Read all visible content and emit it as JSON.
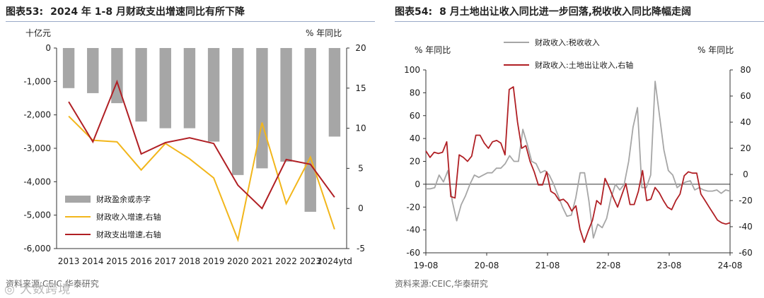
{
  "left": {
    "title_label": "图表53:",
    "title_text": "2024 年 1-8 月财政支出增速同比有所下降",
    "source": "资料来源:CEIC,华泰研究",
    "watermark": "大数跨境",
    "left_unit": "十亿元",
    "right_unit": "% 年同比",
    "colors": {
      "bar": "#a6a6a6",
      "revenue": "#f2b61b",
      "expenditure": "#b01f24"
    }
  },
  "right": {
    "title_label": "图表54:",
    "title_text": "8 月土地出让收入同比进一步回落,税收收入同比降幅走阔",
    "source": "资料来源:CEIC,华泰研究",
    "left_unit": "% 年同比",
    "right_unit": "% 年同比",
    "colors": {
      "tax": "#a6a6a6",
      "land": "#b01f24"
    }
  },
  "chart_data": [
    {
      "type": "bar+line",
      "title": "2024 年 1-8 月财政支出增速同比有所下降",
      "categories": [
        "2013",
        "2014",
        "2015",
        "2016",
        "2017",
        "2018",
        "2019",
        "2020",
        "2021",
        "2022",
        "2023",
        "2024ytd"
      ],
      "y_left": {
        "label": "十亿元",
        "ylim": [
          -6000,
          0
        ],
        "ticks": [
          0,
          -1000,
          -2000,
          -3000,
          -4000,
          -5000,
          -6000
        ]
      },
      "y_right": {
        "label": "% 年同比",
        "ylim": [
          -5,
          20
        ],
        "ticks": [
          20,
          15,
          10,
          5,
          0,
          -5
        ]
      },
      "series": [
        {
          "name": "财政盈余或赤字",
          "kind": "bar",
          "axis": "left",
          "values": [
            -1200,
            -1350,
            -1650,
            -2200,
            -2400,
            -2400,
            -2800,
            -3800,
            -3600,
            -3400,
            -4900,
            -2650
          ]
        },
        {
          "name": "财政收入增速,右轴",
          "kind": "line",
          "axis": "right",
          "values": [
            11.5,
            8.5,
            8.3,
            4.8,
            8.1,
            6.2,
            3.8,
            -3.9,
            10.7,
            0.6,
            6.4,
            -2.6
          ]
        },
        {
          "name": "财政支出增速,右轴",
          "kind": "line",
          "axis": "right",
          "values": [
            13.3,
            8.3,
            15.8,
            6.8,
            8.2,
            8.8,
            8.1,
            2.9,
            0.0,
            6.1,
            5.5,
            1.4
          ]
        }
      ],
      "legend": [
        {
          "name": "财政盈余或赤字",
          "kind": "bar"
        },
        {
          "name": "财政收入增速,右轴",
          "kind": "line"
        },
        {
          "name": "财政支出增速,右轴",
          "kind": "line"
        }
      ]
    },
    {
      "type": "line",
      "title": "8 月土地出让收入同比进一步回落,税收收入同比降幅走阔",
      "x_ticks": [
        "19-08",
        "20-08",
        "21-08",
        "22-08",
        "23-08",
        "24-08"
      ],
      "y_left": {
        "label": "% 年同比",
        "ylim": [
          -60,
          100
        ],
        "ticks": [
          100,
          80,
          60,
          40,
          20,
          0,
          -20,
          -40,
          -60
        ]
      },
      "y_right": {
        "label": "% 年同比",
        "ylim": [
          -60,
          80
        ],
        "ticks": [
          80,
          60,
          40,
          20,
          0,
          -20,
          -40,
          -60
        ]
      },
      "series": [
        {
          "name": "财政收入:税收收入",
          "axis": "left",
          "values": [
            -4,
            -4,
            -3,
            8,
            2,
            12,
            -15,
            -32,
            -18,
            -10,
            0,
            8,
            6,
            8,
            10,
            10,
            14,
            14,
            18,
            25,
            20,
            20,
            48,
            35,
            20,
            18,
            10,
            12,
            8,
            0,
            -10,
            -20,
            -28,
            -27,
            -12,
            10,
            10,
            -15,
            -47,
            -35,
            -38,
            -30,
            -12,
            0,
            -5,
            0,
            20,
            50,
            67,
            -3,
            -3,
            8,
            90,
            60,
            30,
            12,
            8,
            -3,
            0,
            2,
            3,
            -5,
            -3,
            -5,
            -6,
            -6,
            -5,
            -8,
            -5,
            -6
          ]
        },
        {
          "name": "财政收入:土地出让收入,右轴",
          "axis": "right",
          "values": [
            18,
            13,
            17,
            16,
            17,
            25,
            -17,
            -18,
            15,
            13,
            10,
            14,
            30,
            30,
            24,
            20,
            25,
            26,
            24,
            15,
            65,
            67,
            40,
            20,
            22,
            10,
            2,
            -8,
            -8,
            2,
            -13,
            -15,
            -20,
            -19,
            -22,
            -28,
            -24,
            -42,
            -52,
            -43,
            -35,
            -20,
            -23,
            -3,
            -10,
            -18,
            -25,
            -16,
            -7,
            -23,
            -23,
            -13,
            3,
            -20,
            -19,
            -10,
            -14,
            -20,
            -25,
            -27,
            -20,
            -15,
            -1,
            2,
            1,
            1,
            -15,
            -20,
            -25,
            -30,
            -35,
            -37,
            -38,
            -37
          ]
        }
      ],
      "legend": [
        {
          "name": "财政收入:税收收入"
        },
        {
          "name": "财政收入:土地出让收入,右轴"
        }
      ]
    }
  ]
}
